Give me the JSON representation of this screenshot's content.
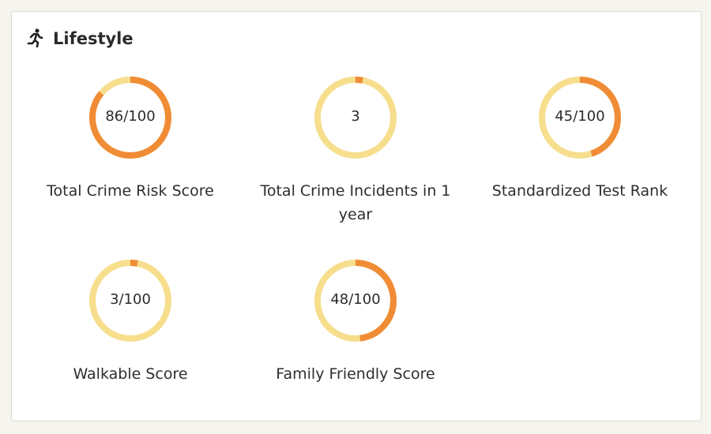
{
  "header": {
    "title": "Lifestyle"
  },
  "gauge_range": [
    0,
    100
  ],
  "metrics": [
    {
      "label": "Total Crime Risk Score",
      "value": 86,
      "value_label": "86/100"
    },
    {
      "label": "Total Crime Incidents in 1 year",
      "value": 3
    },
    {
      "label": "Standardized Test Rank",
      "value": 45,
      "value_label": "45/100"
    },
    {
      "label": "Walkable Score",
      "value": 3,
      "value_label": "3/100"
    },
    {
      "label": "Family Friendly Score",
      "value": 48,
      "value_label": "48/100"
    }
  ]
}
